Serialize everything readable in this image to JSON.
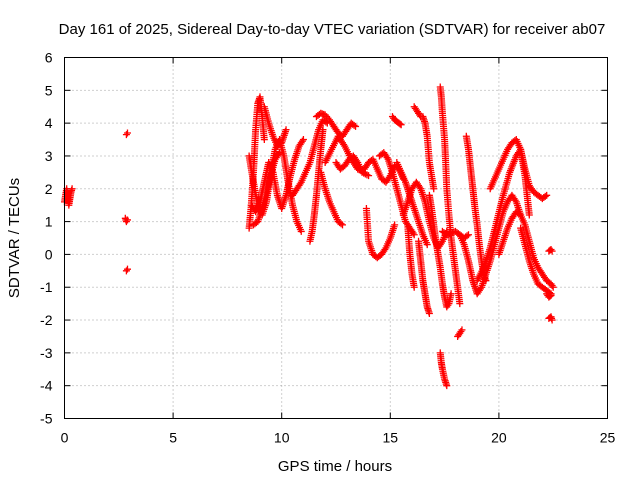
{
  "chart_data": {
    "type": "scatter",
    "title": "Day 161 of 2025, Sidereal Day-to-day VTEC variation (SDTVAR) for receiver ab07",
    "xlabel": "GPS time / hours",
    "ylabel": "SDTVAR / TECUs",
    "xlim": [
      0,
      25
    ],
    "ylim": [
      -5,
      6
    ],
    "xticks": [
      0,
      5,
      10,
      15,
      20,
      25
    ],
    "yticks": [
      -5,
      -4,
      -3,
      -2,
      -1,
      0,
      1,
      2,
      3,
      4,
      5,
      6
    ],
    "grid": true,
    "legend": "none",
    "marker": "plus",
    "color": "#ff0000",
    "tracks": [
      {
        "x": [
          0.0,
          0.1,
          0.2,
          0.3,
          0.35
        ],
        "y": [
          1.6,
          2.0,
          1.5,
          1.9,
          2.0
        ]
      },
      {
        "x": [
          2.8,
          2.85,
          2.9
        ],
        "y": [
          1.1,
          1.0,
          1.05
        ]
      },
      {
        "x": [
          2.85,
          2.9
        ],
        "y": [
          3.65,
          3.7
        ]
      },
      {
        "x": [
          2.85,
          2.9
        ],
        "y": [
          -0.5,
          -0.45
        ]
      },
      {
        "x": [
          8.5,
          8.6,
          8.7,
          8.8,
          8.9,
          9.0,
          9.1,
          9.2
        ],
        "y": [
          0.8,
          1.5,
          2.5,
          3.8,
          4.6,
          4.8,
          4.2,
          3.5
        ]
      },
      {
        "x": [
          8.5,
          8.7,
          8.9,
          9.1,
          9.3,
          9.5,
          9.7,
          9.9,
          10.1,
          10.3,
          10.5,
          10.7,
          10.9
        ],
        "y": [
          3.0,
          2.2,
          1.5,
          1.2,
          1.6,
          2.5,
          3.2,
          3.5,
          3.0,
          2.2,
          1.5,
          1.0,
          0.7
        ]
      },
      {
        "x": [
          8.6,
          8.8,
          9.0,
          9.2,
          9.4,
          9.6,
          9.8,
          10.0,
          10.2,
          10.4,
          10.6,
          10.8,
          11.0
        ],
        "y": [
          1.5,
          1.3,
          1.6,
          2.2,
          2.8,
          2.5,
          1.8,
          1.4,
          1.8,
          2.4,
          2.9,
          3.3,
          3.5
        ]
      },
      {
        "x": [
          8.7,
          8.9,
          9.1,
          9.3,
          9.5,
          9.7,
          9.9
        ],
        "y": [
          0.9,
          1.0,
          1.4,
          1.9,
          2.4,
          2.9,
          3.1
        ]
      },
      {
        "x": [
          9.2,
          9.4,
          9.6,
          9.8,
          10.0,
          10.2
        ],
        "y": [
          4.5,
          4.0,
          3.6,
          3.3,
          3.4,
          3.8
        ]
      },
      {
        "x": [
          10.5,
          10.7,
          10.9,
          11.1,
          11.3,
          11.5,
          11.7,
          11.9,
          12.1
        ],
        "y": [
          1.8,
          2.0,
          2.2,
          2.5,
          2.8,
          3.3,
          3.8,
          4.1,
          4.0
        ]
      },
      {
        "x": [
          11.3,
          11.4,
          11.5,
          11.6,
          11.7,
          11.8,
          11.9
        ],
        "y": [
          0.4,
          0.7,
          1.2,
          1.8,
          2.5,
          3.2,
          3.8
        ]
      },
      {
        "x": [
          11.6,
          11.8,
          12.0,
          12.2,
          12.4,
          12.6,
          12.8,
          13.0,
          13.2,
          13.4
        ],
        "y": [
          4.2,
          4.3,
          4.25,
          4.1,
          3.9,
          3.7,
          3.6,
          3.8,
          4.0,
          3.9
        ]
      },
      {
        "x": [
          11.8,
          12.0,
          12.2,
          12.4,
          12.6,
          12.8
        ],
        "y": [
          2.5,
          2.0,
          1.6,
          1.3,
          1.0,
          0.9
        ]
      },
      {
        "x": [
          12.0,
          12.3,
          12.6,
          12.9,
          13.2,
          13.5,
          13.8
        ],
        "y": [
          2.8,
          3.2,
          3.6,
          3.3,
          2.9,
          2.6,
          2.5
        ]
      },
      {
        "x": [
          12.5,
          12.7,
          12.9,
          13.1,
          13.3,
          13.5,
          13.7,
          14.0
        ],
        "y": [
          2.8,
          2.6,
          2.7,
          2.9,
          3.0,
          2.8,
          2.5,
          2.4
        ]
      },
      {
        "x": [
          13.8,
          14.0,
          14.2,
          14.4,
          14.6,
          14.8,
          15.0,
          15.2,
          15.4,
          15.6
        ],
        "y": [
          2.6,
          2.8,
          2.9,
          2.6,
          2.3,
          2.2,
          2.4,
          2.7,
          2.6,
          2.3
        ]
      },
      {
        "x": [
          14.5,
          14.7,
          14.9,
          15.1,
          15.3,
          15.5,
          15.7,
          15.9,
          16.1
        ],
        "y": [
          3.0,
          3.1,
          2.9,
          2.5,
          2.0,
          1.5,
          1.0,
          0.8,
          0.6
        ]
      },
      {
        "x": [
          13.9,
          14.0,
          14.2,
          14.4,
          14.6,
          14.8,
          15.0,
          15.2
        ],
        "y": [
          1.4,
          0.4,
          0.0,
          -0.1,
          0.0,
          0.2,
          0.5,
          0.9
        ]
      },
      {
        "x": [
          15.1,
          15.2,
          15.3,
          15.4,
          15.5
        ],
        "y": [
          4.2,
          4.1,
          4.05,
          4.0,
          3.95
        ]
      },
      {
        "x": [
          15.3,
          15.5,
          15.7,
          15.9,
          16.1,
          16.3,
          16.5,
          16.7
        ],
        "y": [
          2.8,
          2.5,
          2.2,
          1.8,
          1.4,
          1.0,
          0.6,
          0.3
        ]
      },
      {
        "x": [
          15.6,
          15.8,
          16.0,
          16.2,
          16.4,
          16.6,
          16.8,
          17.0,
          17.2,
          17.4,
          17.6
        ],
        "y": [
          1.2,
          1.6,
          2.0,
          2.2,
          2.0,
          1.6,
          1.0,
          0.5,
          0.2,
          0.4,
          0.7
        ]
      },
      {
        "x": [
          15.8,
          15.9,
          16.0,
          16.1
        ],
        "y": [
          0.9,
          0.0,
          -0.6,
          -1.0
        ]
      },
      {
        "x": [
          16.1,
          16.2,
          16.3,
          16.4,
          16.5,
          16.6,
          16.7,
          16.8,
          17.0
        ],
        "y": [
          4.5,
          4.4,
          4.3,
          4.2,
          4.2,
          4.0,
          3.6,
          2.8,
          2.0
        ]
      },
      {
        "x": [
          16.3,
          16.4,
          16.5,
          16.6,
          16.7,
          16.8
        ],
        "y": [
          0.4,
          -0.2,
          -0.8,
          -1.2,
          -1.6,
          -1.8
        ]
      },
      {
        "x": [
          16.8,
          16.9,
          17.0,
          17.1,
          17.2,
          17.3,
          17.4,
          17.5,
          17.6,
          17.7,
          17.8
        ],
        "y": [
          1.8,
          1.4,
          0.9,
          0.4,
          0.0,
          -0.4,
          -0.9,
          -1.3,
          -1.6,
          -1.5,
          -1.2
        ]
      },
      {
        "x": [
          17.3,
          17.35,
          17.4,
          17.5,
          17.55,
          17.6,
          17.7,
          17.8,
          17.9,
          18.0,
          18.1,
          18.2
        ],
        "y": [
          5.1,
          4.8,
          4.3,
          3.5,
          2.8,
          2.0,
          1.2,
          0.5,
          0.0,
          -0.5,
          -1.0,
          -1.5
        ]
      },
      {
        "x": [
          17.3,
          17.35,
          17.4,
          17.5,
          17.55,
          17.6
        ],
        "y": [
          -3.0,
          -3.3,
          -3.5,
          -3.8,
          -3.9,
          -4.0
        ]
      },
      {
        "x": [
          17.4,
          17.6,
          17.8,
          18.0,
          18.2,
          18.4,
          18.6
        ],
        "y": [
          0.7,
          0.6,
          0.65,
          0.7,
          0.6,
          0.5,
          0.6
        ]
      },
      {
        "x": [
          18.1,
          18.2,
          18.3
        ],
        "y": [
          -2.5,
          -2.4,
          -2.3
        ]
      },
      {
        "x": [
          18.2,
          18.4,
          18.6,
          18.8,
          19.0,
          19.2,
          19.4,
          19.6,
          19.8,
          20.0,
          20.2,
          20.4,
          20.6,
          20.8,
          21.0
        ],
        "y": [
          0.6,
          0.3,
          -0.2,
          -0.8,
          -1.2,
          -1.0,
          -0.6,
          -0.2,
          0.3,
          0.8,
          1.3,
          1.6,
          1.8,
          1.6,
          1.2
        ]
      },
      {
        "x": [
          18.5,
          18.6,
          18.7,
          18.8,
          18.9,
          19.0,
          19.1,
          19.2,
          19.3,
          19.4
        ],
        "y": [
          3.6,
          3.2,
          2.6,
          2.0,
          1.4,
          0.9,
          0.3,
          -0.2,
          -0.6,
          -0.8
        ]
      },
      {
        "x": [
          19.0,
          19.3,
          19.6,
          19.9,
          20.2,
          20.5,
          20.8,
          21.0,
          21.2,
          21.4,
          21.6,
          21.8,
          22.0,
          22.2
        ],
        "y": [
          -0.8,
          -0.4,
          0.2,
          1.0,
          1.8,
          2.5,
          3.0,
          3.2,
          2.6,
          2.1,
          1.9,
          1.8,
          1.7,
          1.8
        ]
      },
      {
        "x": [
          19.6,
          19.8,
          20.0,
          20.2,
          20.4,
          20.6,
          20.8,
          21.0,
          21.2,
          21.4
        ],
        "y": [
          2.0,
          2.3,
          2.6,
          2.9,
          3.2,
          3.4,
          3.5,
          3.2,
          2.4,
          1.2
        ]
      },
      {
        "x": [
          20.0,
          20.2,
          20.4,
          20.6,
          20.8,
          21.0,
          21.2,
          21.4,
          21.6,
          21.8,
          22.0,
          22.2,
          22.4,
          22.5
        ],
        "y": [
          0.0,
          0.4,
          0.8,
          1.1,
          1.3,
          1.2,
          0.9,
          0.4,
          -0.1,
          -0.4,
          -0.6,
          -0.8,
          -0.9,
          -1.0
        ]
      },
      {
        "x": [
          21.0,
          21.2,
          21.4,
          21.6,
          21.8,
          22.0,
          22.2,
          22.4
        ],
        "y": [
          0.8,
          0.3,
          -0.2,
          -0.6,
          -0.9,
          -1.0,
          -1.1,
          -1.2
        ]
      },
      {
        "x": [
          22.3,
          22.4,
          22.45
        ],
        "y": [
          0.1,
          0.15,
          0.1
        ]
      },
      {
        "x": [
          22.3,
          22.4,
          22.45
        ],
        "y": [
          -1.95,
          -1.9,
          -2.0
        ]
      },
      {
        "x": [
          22.2,
          22.3,
          22.4
        ],
        "y": [
          -1.2,
          -1.3,
          -1.25
        ]
      }
    ]
  }
}
